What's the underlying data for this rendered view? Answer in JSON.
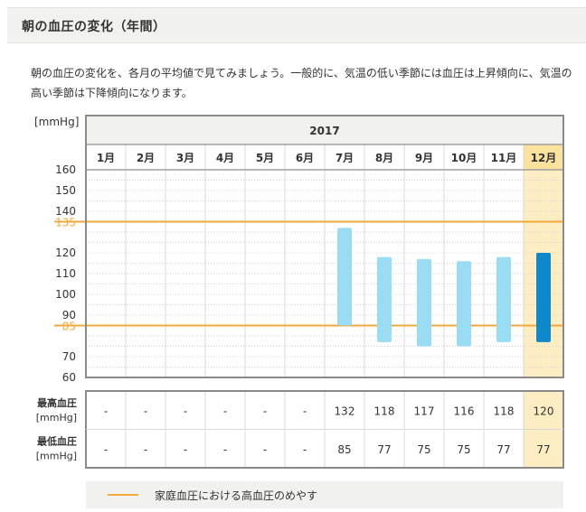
{
  "section_title": "朝の血圧の変化（年間）",
  "description": "朝の血圧の変化を、各月の平均値で見てみましょう。一般的に、気温の低い季節には血圧は上昇傾向に、気温の高い季節は下降傾向になります。",
  "chart_data": {
    "type": "floating-bar",
    "year": "2017",
    "unit_label": "[mmHg]",
    "categories": [
      "1月",
      "2月",
      "3月",
      "4月",
      "5月",
      "6月",
      "7月",
      "8月",
      "9月",
      "10月",
      "11月",
      "12月"
    ],
    "series": [
      {
        "name": "最高血圧",
        "values": [
          null,
          null,
          null,
          null,
          null,
          null,
          132,
          118,
          117,
          116,
          118,
          120
        ]
      },
      {
        "name": "最低血圧",
        "values": [
          null,
          null,
          null,
          null,
          null,
          null,
          85,
          77,
          75,
          75,
          77,
          77
        ]
      }
    ],
    "y_ticks": [
      60,
      70,
      80,
      90,
      100,
      110,
      120,
      130,
      140,
      150,
      160
    ],
    "y_tick_labels": [
      "60",
      "70",
      "",
      "90",
      "100",
      "110",
      "120",
      "",
      "140",
      "150",
      "160"
    ],
    "ylim": [
      60,
      160
    ],
    "reference_lines": [
      {
        "value": 135,
        "label": "135"
      },
      {
        "value": 85,
        "label": "85"
      }
    ],
    "highlight_index": 11,
    "colors": {
      "bar": "#99dcf3",
      "bar_highlight": "#0e88cb",
      "reference": "#f2a93b",
      "highlight_bg": "#fdedc2",
      "highlight_bg_strong": "#fbe29f"
    }
  },
  "table": {
    "rows": [
      {
        "label_top": "最高血圧",
        "label_bottom": "[mmHg]",
        "values": [
          "-",
          "-",
          "-",
          "-",
          "-",
          "-",
          "132",
          "118",
          "117",
          "116",
          "118",
          "120"
        ]
      },
      {
        "label_top": "最低血圧",
        "label_bottom": "[mmHg]",
        "values": [
          "-",
          "-",
          "-",
          "-",
          "-",
          "-",
          "85",
          "77",
          "75",
          "75",
          "77",
          "77"
        ]
      }
    ]
  },
  "legend": {
    "label": "家庭血圧における高血圧のめやす"
  }
}
